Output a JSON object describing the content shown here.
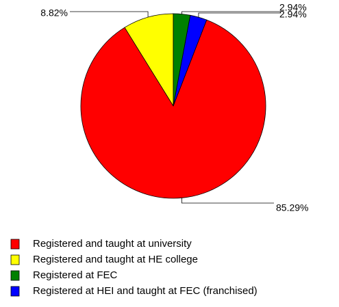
{
  "chart_data": {
    "type": "pie",
    "categories": [
      "Registered and taught at university",
      "Registered and taught at HE college",
      "Registered at FEC",
      "Registered at HEI and taught at FEC (franchised)"
    ],
    "values": [
      85.29,
      8.82,
      2.94,
      2.94
    ],
    "value_labels": [
      "85.29%",
      "8.82%",
      "2.94%",
      "2.94%"
    ],
    "colors": [
      "#ff0000",
      "#ffff00",
      "#008000",
      "#0000ff"
    ],
    "legend": "bottom"
  }
}
